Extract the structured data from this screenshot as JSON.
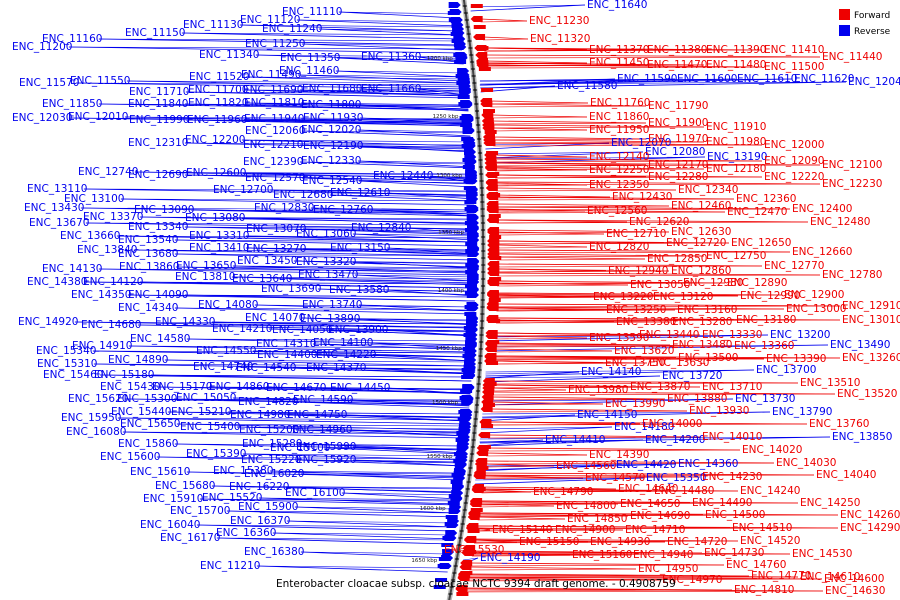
{
  "caption": "Enterobacter cloacae subsp. cloacae NCTC 9394 draft genome. - 0.4908759",
  "legend": {
    "forward": {
      "label": "Forward",
      "color": "#ee0000"
    },
    "reverse": {
      "label": "Reverse",
      "color": "#0000ee"
    }
  },
  "ticks": [
    "1200 kbp",
    "1250 kbp",
    "1300 kbp",
    "1350 kbp",
    "1400 kbp",
    "1450 kbp",
    "1500 kbp",
    "1550 kbp",
    "1600 kbp",
    "1650 kbp"
  ],
  "reverse_labels": [
    "ENC_11110",
    "ENC_11120",
    "ENC_11130",
    "ENC_11160",
    "ENC_11150",
    "ENC_11200",
    "ENC_11240",
    "ENC_11250",
    "ENC_11340",
    "ENC_11350",
    "ENC_11360",
    "ENC_11460",
    "ENC_11520",
    "ENC_11490",
    "ENC_11550",
    "ENC_11570",
    "ENC_11710",
    "ENC_11700",
    "ENC_11690",
    "ENC_11680",
    "ENC_11660",
    "ENC_11850",
    "ENC_11840",
    "ENC_11820",
    "ENC_11810",
    "ENC_11800",
    "ENC_12030",
    "ENC_12010",
    "ENC_11990",
    "ENC_11960",
    "ENC_11940",
    "ENC_11930",
    "ENC_12060",
    "ENC_12020",
    "ENC_12310",
    "ENC_12200",
    "ENC_12210",
    "ENC_12190",
    "ENC_12390",
    "ENC_12330",
    "ENC_12740",
    "ENC_12690",
    "ENC_12600",
    "ENC_12570",
    "ENC_12440",
    "ENC_12540",
    "ENC_13110",
    "ENC_12700",
    "ENC_12680",
    "ENC_12610",
    "ENC_13100",
    "ENC_12830",
    "ENC_12760",
    "ENC_13430",
    "ENC_13090",
    "ENC_13370",
    "ENC_13080",
    "ENC_13670",
    "ENC_13340",
    "ENC_13310",
    "ENC_13070",
    "ENC_12840",
    "ENC_13660",
    "ENC_13540",
    "ENC_13410",
    "ENC_13270",
    "ENC_13060",
    "ENC_13840",
    "ENC_13680",
    "ENC_13150",
    "ENC_13860",
    "ENC_13650",
    "ENC_13450",
    "ENC_13320",
    "ENC_14130",
    "ENC_13810",
    "ENC_13640",
    "ENC_13470",
    "ENC_14380",
    "ENC_14120",
    "ENC_13690",
    "ENC_13580",
    "ENC_14350",
    "ENC_14090",
    "ENC_14340",
    "ENC_14080",
    "ENC_13740",
    "ENC_14920",
    "ENC_14330",
    "ENC_14070",
    "ENC_13890",
    "ENC_14680",
    "ENC_14210",
    "ENC_14050",
    "ENC_13900",
    "ENC_14580",
    "ENC_14310",
    "ENC_14100",
    "ENC_15340",
    "ENC_14910",
    "ENC_14550",
    "ENC_14400",
    "ENC_14220",
    "ENC_15310",
    "ENC_14890",
    "ENC_14740",
    "ENC_14540",
    "ENC_14370",
    "ENC_15460",
    "ENC_15180",
    "ENC_15430",
    "ENC_15170",
    "ENC_14860",
    "ENC_14670",
    "ENC_14450",
    "ENC_15620",
    "ENC_15300",
    "ENC_15050",
    "ENC_14820",
    "ENC_14590",
    "ENC_15440",
    "ENC_15210",
    "ENC_14980",
    "ENC_14750",
    "ENC_15950",
    "ENC_15650",
    "ENC_15400",
    "ENC_15200",
    "ENC_14960",
    "ENC_16080",
    "ENC_15860",
    "ENC_15280",
    "ENC_15100",
    "ENC_15990",
    "ENC_15600",
    "ENC_15390",
    "ENC_15220",
    "ENC_15920",
    "ENC_15610",
    "ENC_15380",
    "ENC_16020",
    "ENC_15680",
    "ENC_16220",
    "ENC_15910",
    "ENC_15520",
    "ENC_16100",
    "ENC_15700",
    "ENC_15900",
    "ENC_16370",
    "ENC_16040",
    "ENC_16360",
    "ENC_16170",
    "ENC_16380",
    "ENC_11210",
    "ENC_11640",
    "ENC_11580",
    "ENC_11590",
    "ENC_11600",
    "ENC_11610",
    "ENC_11620",
    "ENC_12040",
    "ENC_12070",
    "ENC_12080",
    "ENC_13190",
    "ENC_13200",
    "ENC_13490",
    "ENC_13700",
    "ENC_13720",
    "ENC_13730",
    "ENC_13790",
    "ENC_13850",
    "ENC_14140",
    "ENC_14150",
    "ENC_14180",
    "ENC_14200",
    "ENC_14360",
    "ENC_14410",
    "ENC_14420",
    "ENC_15350",
    "ENC_14190"
  ],
  "forward_labels": [
    "ENC_11230",
    "ENC_11320",
    "ENC_11370",
    "ENC_11380",
    "ENC_11390",
    "ENC_11410",
    "ENC_11440",
    "ENC_11450",
    "ENC_11470",
    "ENC_11480",
    "ENC_11500",
    "ENC_11760",
    "ENC_11790",
    "ENC_11860",
    "ENC_11900",
    "ENC_11910",
    "ENC_11950",
    "ENC_11970",
    "ENC_11980",
    "ENC_12000",
    "ENC_12140",
    "ENC_12090",
    "ENC_12100",
    "ENC_12170",
    "ENC_12250",
    "ENC_12180",
    "ENC_12280",
    "ENC_12220",
    "ENC_12230",
    "ENC_12350",
    "ENC_12340",
    "ENC_12360",
    "ENC_12430",
    "ENC_12460",
    "ENC_12470",
    "ENC_12400",
    "ENC_12560",
    "ENC_12480",
    "ENC_12620",
    "ENC_12630",
    "ENC_12710",
    "ENC_12650",
    "ENC_12820",
    "ENC_12720",
    "ENC_12660",
    "ENC_12850",
    "ENC_12750",
    "ENC_12770",
    "ENC_12940",
    "ENC_12860",
    "ENC_12780",
    "ENC_13050",
    "ENC_12980",
    "ENC_12890",
    "ENC_12990",
    "ENC_12900",
    "ENC_12910",
    "ENC_13220",
    "ENC_13120",
    "ENC_13000",
    "ENC_13250",
    "ENC_13160",
    "ENC_13010",
    "ENC_13380",
    "ENC_13280",
    "ENC_13180",
    "ENC_13440",
    "ENC_13330",
    "ENC_13590",
    "ENC_13480",
    "ENC_13360",
    "ENC_13620",
    "ENC_13500",
    "ENC_13390",
    "ENC_13260",
    "ENC_13750",
    "ENC_13630",
    "ENC_13510",
    "ENC_13980",
    "ENC_13870",
    "ENC_13710",
    "ENC_13880",
    "ENC_13520",
    "ENC_13990",
    "ENC_13930",
    "ENC_13760",
    "ENC_14000",
    "ENC_14010",
    "ENC_14020",
    "ENC_14030",
    "ENC_14040",
    "ENC_14390",
    "ENC_14230",
    "ENC_14560",
    "ENC_14570",
    "ENC_14480",
    "ENC_14240",
    "ENC_14790",
    "ENC_14640",
    "ENC_14490",
    "ENC_14250",
    "ENC_14800",
    "ENC_14650",
    "ENC_14500",
    "ENC_14260",
    "ENC_14850",
    "ENC_14690",
    "ENC_14510",
    "ENC_14290",
    "ENC_15530",
    "ENC_15140",
    "ENC_14900",
    "ENC_14710",
    "ENC_14520",
    "ENC_15150",
    "ENC_14930",
    "ENC_14720",
    "ENC_14530",
    "ENC_15160",
    "ENC_14940",
    "ENC_14730",
    "ENC_14600",
    "ENC_14950",
    "ENC_14760",
    "ENC_14610",
    "ENC_14970",
    "ENC_14770",
    "ENC_14630",
    "ENC_14810"
  ]
}
